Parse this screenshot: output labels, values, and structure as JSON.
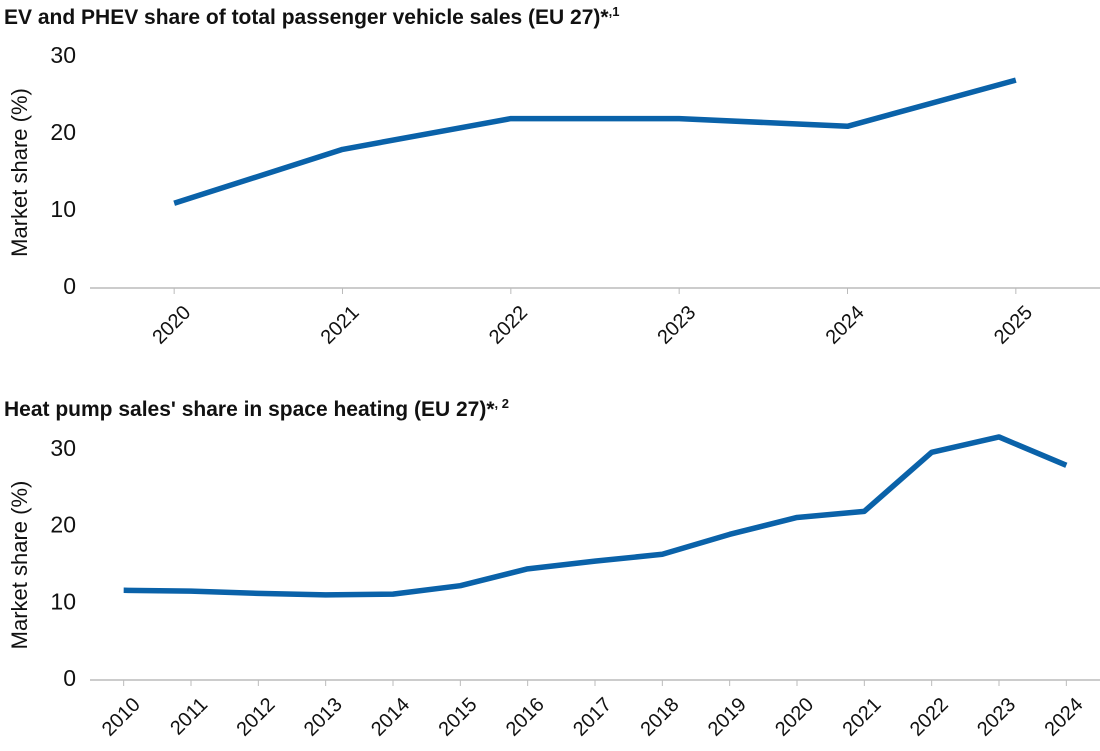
{
  "chart_data": [
    {
      "type": "line",
      "title": "EV and PHEV share of total passenger vehicle sales (EU 27)*",
      "title_superscript": ",1",
      "y_label": "Market share (%)",
      "categories": [
        "2020",
        "2021",
        "2022",
        "2023",
        "2024",
        "2025"
      ],
      "series": [
        {
          "name": "EV and PHEV share",
          "color": "#0a62a9",
          "values": [
            11,
            18,
            22,
            22,
            21,
            27
          ]
        }
      ],
      "ylim": [
        0,
        30
      ],
      "yticks": [
        0,
        10,
        20,
        30
      ],
      "grid": false
    },
    {
      "type": "line",
      "title": "Heat pump sales' share in space heating (EU 27)*",
      "title_superscript": ", 2",
      "y_label": "Market share (%)",
      "categories": [
        "2010",
        "2011",
        "2012",
        "2013",
        "2014",
        "2015",
        "2016",
        "2017",
        "2018",
        "2019",
        "2020",
        "2021",
        "2022",
        "2023",
        "2024"
      ],
      "series": [
        {
          "name": "Heat pump share",
          "color": "#0a62a9",
          "values": [
            11.7,
            11.6,
            11.3,
            11.1,
            11.2,
            12.3,
            14.5,
            15.5,
            16.4,
            19.0,
            21.2,
            22.0,
            29.7,
            31.7,
            28.0
          ]
        }
      ],
      "ylim": [
        0,
        30
      ],
      "yticks": [
        0,
        10,
        20,
        30
      ],
      "grid": false
    }
  ]
}
